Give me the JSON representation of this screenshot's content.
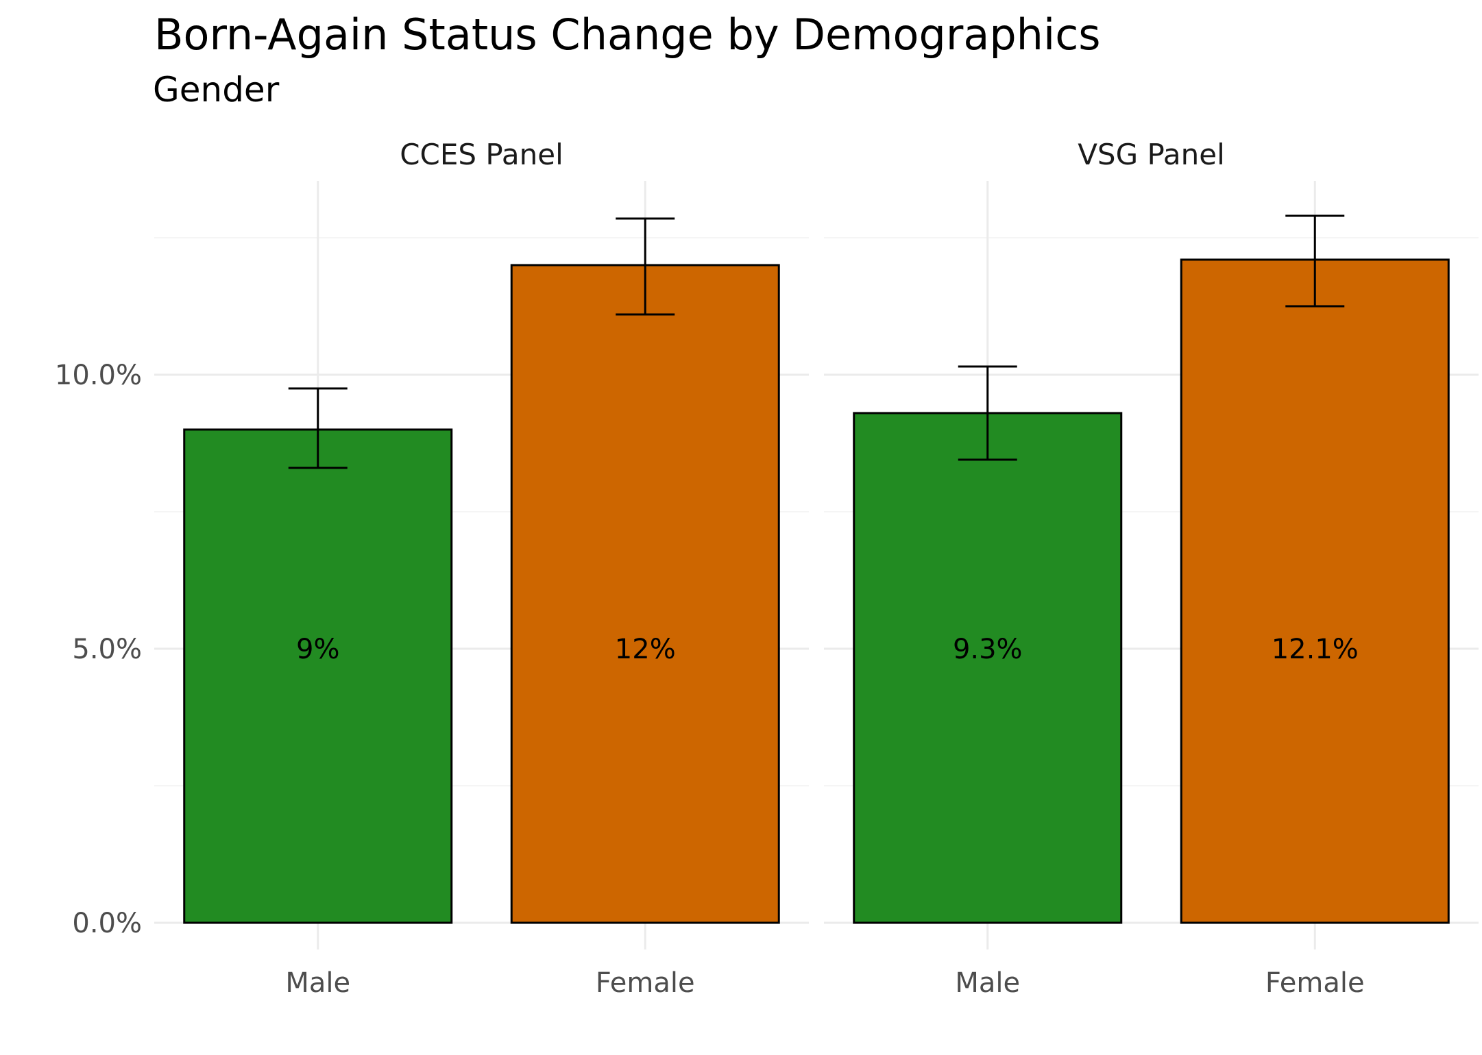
{
  "chart_data": {
    "type": "bar",
    "title": "Born-Again Status Change by Demographics",
    "subtitle": "Gender",
    "xlabel": "",
    "ylabel": "",
    "ylim": [
      0,
      13.8
    ],
    "y_ticks": [
      {
        "value": 0,
        "label": "0.0%"
      },
      {
        "value": 5,
        "label": "5.0%"
      },
      {
        "value": 10,
        "label": "10.0%"
      }
    ],
    "grid": true,
    "legend": "none",
    "categories": [
      "Male",
      "Female"
    ],
    "colors": {
      "Male": "#228b22",
      "Female": "#cd6600"
    },
    "panels": [
      {
        "name": "CCES Panel",
        "bars": [
          {
            "category": "Male",
            "value": 9.0,
            "ci_low": 8.3,
            "ci_high": 9.75,
            "label": "9%"
          },
          {
            "category": "Female",
            "value": 12.0,
            "ci_low": 11.1,
            "ci_high": 12.85,
            "label": "12%"
          }
        ]
      },
      {
        "name": "VSG Panel",
        "bars": [
          {
            "category": "Male",
            "value": 9.3,
            "ci_low": 8.45,
            "ci_high": 10.15,
            "label": "9.3%"
          },
          {
            "category": "Female",
            "value": 12.1,
            "ci_low": 11.25,
            "ci_high": 12.9,
            "label": "12.1%"
          }
        ]
      }
    ]
  }
}
